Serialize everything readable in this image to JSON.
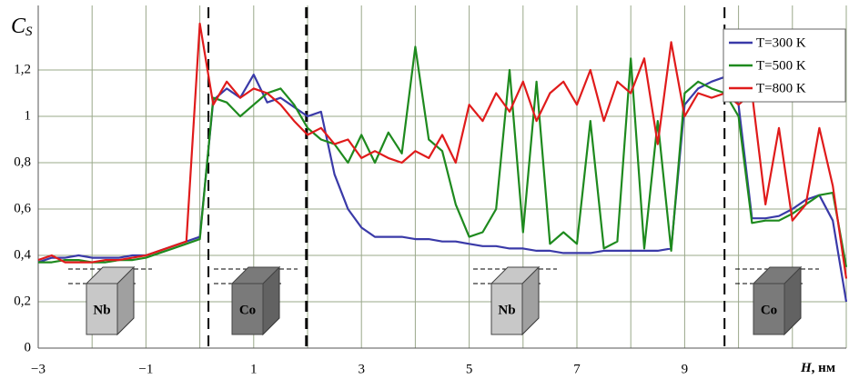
{
  "chart_data": {
    "type": "line",
    "ylabel": "C",
    "ylabel_sub": "S",
    "xlabel": "H",
    "xlabel_unit": ", нм",
    "x": [
      -3,
      -2.75,
      -2.5,
      -2.25,
      -2,
      -1.75,
      -1.5,
      -1.25,
      -1,
      -0.75,
      -0.5,
      -0.25,
      0,
      0.25,
      0.5,
      0.75,
      1,
      1.25,
      1.5,
      1.75,
      2,
      2.25,
      2.5,
      2.75,
      3,
      3.25,
      3.5,
      3.75,
      4,
      4.25,
      4.5,
      4.75,
      5,
      5.25,
      5.5,
      5.75,
      6,
      6.25,
      6.5,
      6.75,
      7,
      7.25,
      7.5,
      7.75,
      8,
      8.25,
      8.5,
      8.75,
      9,
      9.25,
      9.5,
      9.75,
      10,
      10.25,
      10.5,
      10.75,
      11,
      11.25,
      11.5,
      11.75,
      12
    ],
    "series": [
      {
        "name": "T=300 K",
        "color": "#3a3aa8",
        "values": [
          0.37,
          0.39,
          0.39,
          0.4,
          0.39,
          0.39,
          0.39,
          0.4,
          0.4,
          0.42,
          0.44,
          0.46,
          0.48,
          1.07,
          1.12,
          1.08,
          1.18,
          1.06,
          1.08,
          1.04,
          1.0,
          1.02,
          0.75,
          0.6,
          0.52,
          0.48,
          0.48,
          0.48,
          0.47,
          0.47,
          0.46,
          0.46,
          0.45,
          0.44,
          0.44,
          0.43,
          0.43,
          0.42,
          0.42,
          0.41,
          0.41,
          0.41,
          0.42,
          0.42,
          0.42,
          0.42,
          0.42,
          0.43,
          1.05,
          1.12,
          1.15,
          1.17,
          1.05,
          0.56,
          0.56,
          0.57,
          0.6,
          0.64,
          0.66,
          0.55,
          0.2
        ]
      },
      {
        "name": "T=500 K",
        "color": "#1e8a1e",
        "values": [
          0.37,
          0.37,
          0.38,
          0.38,
          0.37,
          0.37,
          0.38,
          0.38,
          0.39,
          0.41,
          0.43,
          0.45,
          0.47,
          1.08,
          1.06,
          1.0,
          1.05,
          1.1,
          1.12,
          1.05,
          0.95,
          0.9,
          0.88,
          0.8,
          0.92,
          0.8,
          0.93,
          0.84,
          1.3,
          0.9,
          0.85,
          0.62,
          0.48,
          0.5,
          0.6,
          1.2,
          0.5,
          1.15,
          0.45,
          0.5,
          0.45,
          0.98,
          0.43,
          0.46,
          1.25,
          0.43,
          0.98,
          0.42,
          1.1,
          1.15,
          1.12,
          1.1,
          1.0,
          0.54,
          0.55,
          0.55,
          0.58,
          0.62,
          0.66,
          0.67,
          0.35
        ]
      },
      {
        "name": "T=800 K",
        "color": "#e01b1b",
        "values": [
          0.38,
          0.4,
          0.37,
          0.37,
          0.37,
          0.38,
          0.38,
          0.39,
          0.4,
          0.42,
          0.44,
          0.46,
          1.4,
          1.05,
          1.15,
          1.08,
          1.12,
          1.1,
          1.05,
          0.98,
          0.92,
          0.95,
          0.88,
          0.9,
          0.82,
          0.85,
          0.82,
          0.8,
          0.85,
          0.82,
          0.92,
          0.8,
          1.05,
          0.98,
          1.1,
          1.02,
          1.15,
          0.98,
          1.1,
          1.15,
          1.05,
          1.2,
          0.98,
          1.15,
          1.1,
          1.25,
          0.88,
          1.32,
          1.0,
          1.1,
          1.08,
          1.1,
          1.05,
          1.1,
          0.62,
          0.95,
          0.55,
          0.62,
          0.95,
          0.7,
          0.3
        ]
      }
    ],
    "xlim": [
      -3,
      12
    ],
    "xticks": [
      {
        "value": -3,
        "label": "−3"
      },
      {
        "value": -1,
        "label": "−1"
      },
      1,
      3,
      5,
      7,
      9
    ],
    "x_minor_gridlines": [
      -2,
      0,
      2,
      4,
      6,
      8,
      10,
      11,
      12
    ],
    "ylim": [
      0,
      1.4
    ],
    "yticks": [
      0,
      {
        "value": 0.2,
        "label": "0,2"
      },
      {
        "value": 0.4,
        "label": "0,4"
      },
      {
        "value": 0.6,
        "label": "0,6"
      },
      {
        "value": 0.8,
        "label": "0,8"
      },
      1,
      {
        "value": 1.2,
        "label": "1,2"
      }
    ],
    "grid": true,
    "legend": "top-right",
    "boundaries": [
      0.16,
      1.98,
      9.74
    ],
    "layers": [
      "Nb",
      "Co",
      "Nb",
      "Co"
    ]
  }
}
